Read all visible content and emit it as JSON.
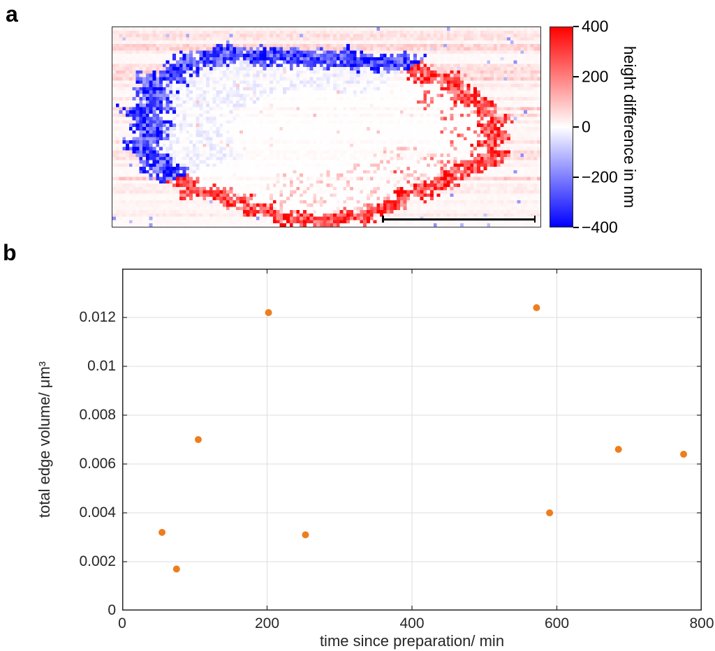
{
  "figure": {
    "background": "#ffffff",
    "text_color": "#262626"
  },
  "panel_a": {
    "label": "a",
    "colorbar": {
      "label": "height difference in nm",
      "tick_labels": [
        "400",
        "200",
        "0",
        "−200",
        "−400"
      ],
      "tick_values": [
        400,
        200,
        0,
        -200,
        -400
      ],
      "range": [
        -400,
        400
      ],
      "colormap": [
        "#0000ff",
        "#ffffff",
        "#ff0000"
      ]
    },
    "has_scale_bar": true
  },
  "panel_b": {
    "label": "b"
  },
  "chart_data": [
    {
      "type": "heatmap",
      "panel": "a",
      "title": "",
      "colorbar_label": "height difference in nm",
      "value_range_nm": [
        -400,
        400
      ],
      "colorbar_ticks": [
        400,
        200,
        0,
        -200,
        -400
      ],
      "colormap": [
        "#0000ff",
        "#ffffff",
        "#ff0000"
      ],
      "description": "Pixelated height-difference map of an oval cell-shaped region on a faint red horizontally-streaked background; negative (blue) rim along the upper-left edge, positive (red) rim along the right and bottom edges, near-zero (white) interior with faint red wisps; black scale bar at lower right"
    },
    {
      "type": "scatter",
      "panel": "b",
      "title": "",
      "xlabel": "time since preparation/ min",
      "ylabel": "total edge volume/ μm³",
      "x": [
        55,
        75,
        105,
        202,
        253,
        572,
        590,
        685,
        775
      ],
      "y": [
        0.0032,
        0.0017,
        0.007,
        0.0122,
        0.0031,
        0.0124,
        0.004,
        0.0066,
        0.0064
      ],
      "xlim": [
        0,
        800
      ],
      "ylim": [
        0,
        0.014
      ],
      "xticks": [
        0,
        200,
        400,
        600,
        800
      ],
      "yticks": [
        0,
        0.002,
        0.004,
        0.006,
        0.008,
        0.01,
        0.012
      ],
      "xtick_labels": [
        "0",
        "200",
        "400",
        "600",
        "800"
      ],
      "ytick_labels": [
        "0",
        "0.002",
        "0.004",
        "0.006",
        "0.008",
        "0.01",
        "0.012"
      ],
      "grid": true,
      "marker_color": "#ee7d1e",
      "axis_color": "#262626",
      "grid_color": "#dedede"
    }
  ]
}
